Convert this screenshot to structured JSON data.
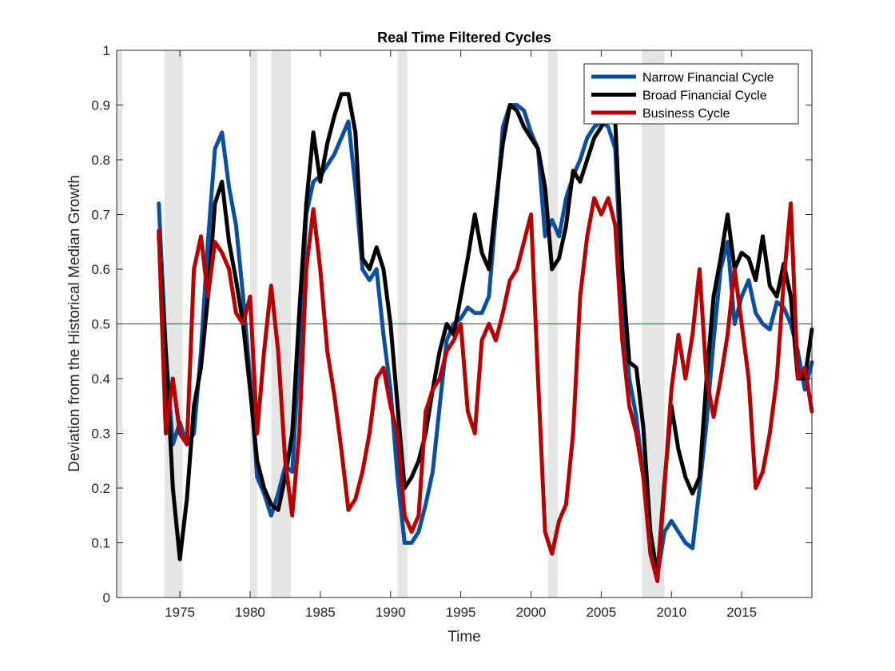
{
  "chart_data": {
    "type": "line",
    "title": "Real Time Filtered Cycles",
    "xlabel": "Time",
    "ylabel": "Deviation from the Historical Median Growth",
    "xlim": [
      1970.5,
      2020
    ],
    "ylim": [
      0,
      1
    ],
    "xticks": [
      1975,
      1980,
      1985,
      1990,
      1995,
      2000,
      2005,
      2010,
      2015
    ],
    "yticks": [
      0,
      0.1,
      0.2,
      0.3,
      0.4,
      0.5,
      0.6,
      0.7,
      0.8,
      0.9,
      1
    ],
    "ytick_labels": [
      "0",
      "0.1",
      "0.2",
      "0.3",
      "0.4",
      "0.5",
      "0.6",
      "0.7",
      "0.8",
      "0.9",
      "1"
    ],
    "grid": false,
    "legend_position": "top-right",
    "reference_line": {
      "y": 0.5,
      "color": "#7e2f8e"
    },
    "recession_color": "#e5e5e5",
    "recessions": [
      [
        1970.0,
        1970.9
      ],
      [
        1973.9,
        1975.2
      ],
      [
        1980.0,
        1980.5
      ],
      [
        1981.5,
        1982.9
      ],
      [
        1990.5,
        1991.2
      ],
      [
        2001.2,
        2001.9
      ],
      [
        2007.9,
        2009.5
      ]
    ],
    "series": [
      {
        "name": "Narrow Financial Cycle",
        "color": "#0a4f9e",
        "x": [
          1973.5,
          1974.0,
          1974.5,
          1975.0,
          1975.5,
          1976.0,
          1976.5,
          1977.0,
          1977.5,
          1978.0,
          1978.5,
          1979.0,
          1979.5,
          1980.0,
          1980.5,
          1981.0,
          1981.5,
          1982.0,
          1982.5,
          1983.0,
          1983.5,
          1984.0,
          1984.5,
          1985.0,
          1985.5,
          1986.0,
          1986.5,
          1987.0,
          1987.5,
          1988.0,
          1988.5,
          1989.0,
          1989.5,
          1990.0,
          1990.5,
          1991.0,
          1991.5,
          1992.0,
          1992.5,
          1993.0,
          1993.5,
          1994.0,
          1994.5,
          1995.0,
          1995.5,
          1996.0,
          1996.5,
          1997.0,
          1997.5,
          1998.0,
          1998.5,
          1999.0,
          1999.5,
          2000.0,
          2000.5,
          2001.0,
          2001.5,
          2002.0,
          2002.5,
          2003.0,
          2003.5,
          2004.0,
          2004.5,
          2005.0,
          2005.5,
          2006.0,
          2006.5,
          2007.0,
          2007.5,
          2008.0,
          2008.5,
          2009.0,
          2009.5,
          2010.0,
          2010.5,
          2011.0,
          2011.5,
          2012.0,
          2012.5,
          2013.0,
          2013.5,
          2014.0,
          2014.5,
          2015.0,
          2015.5,
          2016.0,
          2016.5,
          2017.0,
          2017.5,
          2018.0,
          2018.5,
          2019.0,
          2019.5,
          2020.0
        ],
        "values": [
          0.72,
          0.45,
          0.28,
          0.32,
          0.28,
          0.3,
          0.45,
          0.65,
          0.82,
          0.85,
          0.75,
          0.68,
          0.55,
          0.4,
          0.22,
          0.19,
          0.15,
          0.19,
          0.24,
          0.23,
          0.45,
          0.7,
          0.76,
          0.77,
          0.79,
          0.81,
          0.84,
          0.87,
          0.75,
          0.6,
          0.58,
          0.6,
          0.48,
          0.38,
          0.22,
          0.1,
          0.1,
          0.12,
          0.17,
          0.23,
          0.35,
          0.47,
          0.5,
          0.51,
          0.53,
          0.52,
          0.52,
          0.55,
          0.7,
          0.86,
          0.9,
          0.9,
          0.89,
          0.85,
          0.82,
          0.66,
          0.69,
          0.66,
          0.73,
          0.77,
          0.8,
          0.84,
          0.86,
          0.87,
          0.86,
          0.82,
          0.55,
          0.4,
          0.33,
          0.22,
          0.1,
          0.04,
          0.12,
          0.14,
          0.12,
          0.1,
          0.09,
          0.2,
          0.32,
          0.47,
          0.6,
          0.65,
          0.5,
          0.55,
          0.58,
          0.52,
          0.5,
          0.49,
          0.54,
          0.53,
          0.5,
          0.45,
          0.38,
          0.43
        ]
      },
      {
        "name": "Broad Financial Cycle",
        "color": "#000000",
        "x": [
          1973.5,
          1974.0,
          1974.5,
          1975.0,
          1975.5,
          1976.0,
          1976.5,
          1977.0,
          1977.5,
          1978.0,
          1978.5,
          1979.0,
          1979.5,
          1980.0,
          1980.5,
          1981.0,
          1981.5,
          1982.0,
          1982.5,
          1983.0,
          1983.5,
          1984.0,
          1984.5,
          1985.0,
          1985.5,
          1986.0,
          1986.5,
          1987.0,
          1987.5,
          1988.0,
          1988.5,
          1989.0,
          1989.5,
          1990.0,
          1990.5,
          1991.0,
          1991.5,
          1992.0,
          1992.5,
          1993.0,
          1993.5,
          1994.0,
          1994.5,
          1995.0,
          1995.5,
          1996.0,
          1996.5,
          1997.0,
          1997.5,
          1998.0,
          1998.5,
          1999.0,
          1999.5,
          2000.0,
          2000.5,
          2001.0,
          2001.5,
          2002.0,
          2002.5,
          2003.0,
          2003.5,
          2004.0,
          2004.5,
          2005.0,
          2005.5,
          2006.0,
          2006.5,
          2007.0,
          2007.5,
          2008.0,
          2008.5,
          2009.0,
          2009.5,
          2010.0,
          2010.5,
          2011.0,
          2011.5,
          2012.0,
          2012.5,
          2013.0,
          2013.5,
          2014.0,
          2014.5,
          2015.0,
          2015.5,
          2016.0,
          2016.5,
          2017.0,
          2017.5,
          2018.0,
          2018.5,
          2019.0,
          2019.5,
          2020.0
        ],
        "values": [
          0.66,
          0.45,
          0.2,
          0.07,
          0.18,
          0.35,
          0.42,
          0.55,
          0.72,
          0.76,
          0.65,
          0.58,
          0.5,
          0.38,
          0.25,
          0.2,
          0.17,
          0.16,
          0.22,
          0.3,
          0.52,
          0.72,
          0.85,
          0.76,
          0.83,
          0.88,
          0.92,
          0.92,
          0.85,
          0.62,
          0.6,
          0.64,
          0.6,
          0.5,
          0.35,
          0.2,
          0.22,
          0.25,
          0.3,
          0.38,
          0.45,
          0.5,
          0.48,
          0.55,
          0.62,
          0.7,
          0.63,
          0.6,
          0.72,
          0.83,
          0.9,
          0.89,
          0.86,
          0.84,
          0.82,
          0.75,
          0.6,
          0.62,
          0.68,
          0.78,
          0.76,
          0.8,
          0.84,
          0.86,
          0.88,
          0.87,
          0.6,
          0.43,
          0.42,
          0.31,
          0.12,
          0.04,
          0.21,
          0.35,
          0.27,
          0.22,
          0.19,
          0.22,
          0.4,
          0.55,
          0.62,
          0.7,
          0.6,
          0.63,
          0.62,
          0.58,
          0.66,
          0.57,
          0.55,
          0.61,
          0.55,
          0.4,
          0.4,
          0.49
        ]
      },
      {
        "name": "Business Cycle",
        "color": "#b50000",
        "x": [
          1973.5,
          1974.0,
          1974.5,
          1975.0,
          1975.5,
          1976.0,
          1976.5,
          1977.0,
          1977.5,
          1978.0,
          1978.5,
          1979.0,
          1979.5,
          1980.0,
          1980.5,
          1981.0,
          1981.5,
          1982.0,
          1982.5,
          1983.0,
          1983.5,
          1984.0,
          1984.5,
          1985.0,
          1985.5,
          1986.0,
          1986.5,
          1987.0,
          1987.5,
          1988.0,
          1988.5,
          1989.0,
          1989.5,
          1990.0,
          1990.5,
          1991.0,
          1991.5,
          1992.0,
          1992.5,
          1993.0,
          1993.5,
          1994.0,
          1994.5,
          1995.0,
          1995.5,
          1996.0,
          1996.5,
          1997.0,
          1997.5,
          1998.0,
          1998.5,
          1999.0,
          1999.5,
          2000.0,
          2000.5,
          2001.0,
          2001.5,
          2002.0,
          2002.5,
          2003.0,
          2003.5,
          2004.0,
          2004.5,
          2005.0,
          2005.5,
          2006.0,
          2006.5,
          2007.0,
          2007.5,
          2008.0,
          2008.5,
          2009.0,
          2009.5,
          2010.0,
          2010.5,
          2011.0,
          2011.5,
          2012.0,
          2012.5,
          2013.0,
          2013.5,
          2014.0,
          2014.5,
          2015.0,
          2015.5,
          2016.0,
          2016.5,
          2017.0,
          2017.5,
          2018.0,
          2018.5,
          2019.0,
          2019.5,
          2020.0
        ],
        "values": [
          0.67,
          0.3,
          0.4,
          0.3,
          0.28,
          0.6,
          0.66,
          0.55,
          0.65,
          0.63,
          0.6,
          0.52,
          0.5,
          0.55,
          0.3,
          0.45,
          0.57,
          0.45,
          0.25,
          0.15,
          0.3,
          0.6,
          0.71,
          0.6,
          0.45,
          0.37,
          0.27,
          0.16,
          0.18,
          0.23,
          0.3,
          0.4,
          0.42,
          0.35,
          0.3,
          0.15,
          0.12,
          0.15,
          0.34,
          0.38,
          0.4,
          0.45,
          0.47,
          0.5,
          0.34,
          0.3,
          0.47,
          0.5,
          0.47,
          0.52,
          0.58,
          0.6,
          0.65,
          0.7,
          0.4,
          0.12,
          0.08,
          0.14,
          0.17,
          0.3,
          0.55,
          0.66,
          0.73,
          0.7,
          0.73,
          0.68,
          0.47,
          0.35,
          0.3,
          0.22,
          0.08,
          0.03,
          0.2,
          0.38,
          0.48,
          0.4,
          0.48,
          0.6,
          0.4,
          0.33,
          0.4,
          0.48,
          0.6,
          0.5,
          0.4,
          0.2,
          0.23,
          0.3,
          0.4,
          0.58,
          0.72,
          0.4,
          0.42,
          0.34
        ]
      }
    ]
  }
}
